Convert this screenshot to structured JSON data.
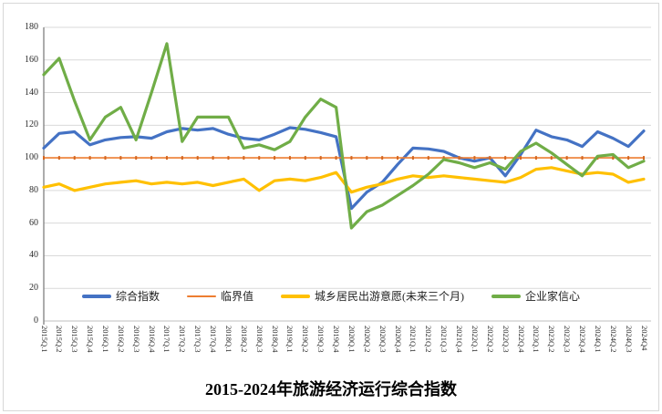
{
  "title": {
    "text": "2015-2024年旅游经济运行综合指数"
  },
  "colors": {
    "composite_blue": "#4472C4",
    "critical_orange": "#ED7D31",
    "critical_marker": "#D4661F",
    "travel_yellow": "#FFC000",
    "entrepreneur_green": "#70AD47",
    "gridline": "#D9D9D9",
    "axis_line": "#808080",
    "axis_text": "#2b2b2b"
  },
  "chart_data": {
    "type": "line",
    "title": "2015-2024年旅游经济运行综合指数",
    "grid": true,
    "legend_position": "bottom",
    "ylim": [
      0,
      180
    ],
    "yticks": [
      0,
      20,
      40,
      60,
      80,
      100,
      120,
      140,
      160,
      180
    ],
    "categories": [
      "2015Q.1",
      "2015Q.2",
      "2015Q.3",
      "2015Q.4",
      "2016Q.1",
      "2016Q.2",
      "2016Q.3",
      "2016Q.4",
      "2017Q.1",
      "2017Q.2",
      "2017Q.3",
      "2017Q.4",
      "2018Q.1",
      "2018Q.2",
      "2018Q.3",
      "2018Q.4",
      "2019Q.1",
      "2019Q.2",
      "2019Q.3",
      "2019Q.4",
      "2020Q.1",
      "2020Q.2",
      "2020Q.3",
      "2020Q.4",
      "2021Q.1",
      "2021Q.2",
      "2021Q.3",
      "2021Q.4",
      "2022Q.1",
      "2022Q.2",
      "2022Q.3",
      "2022Q.4",
      "2023Q.1",
      "2023Q.2",
      "2023Q.3",
      "2023Q.4",
      "2024Q.1",
      "2024Q.2",
      "2024Q.3",
      "2024Q4"
    ],
    "series": [
      {
        "name": "综合指数",
        "slug": "composite-index",
        "color": "#4472C4",
        "stroke_width": 3.2,
        "markers": false,
        "values": [
          106,
          115,
          116,
          108,
          111,
          112.5,
          113,
          112,
          116,
          118,
          117,
          118,
          114.5,
          112,
          111,
          114.5,
          118.5,
          117.5,
          115.5,
          113,
          69,
          79,
          85,
          96,
          106,
          105.5,
          104,
          100,
          98,
          100,
          89,
          102,
          117,
          113,
          111,
          107,
          116,
          112,
          107,
          116.5
        ]
      },
      {
        "name": "临界值",
        "slug": "critical-value",
        "color": "#ED7D31",
        "stroke_width": 1.6,
        "markers": true,
        "values": [
          100,
          100,
          100,
          100,
          100,
          100,
          100,
          100,
          100,
          100,
          100,
          100,
          100,
          100,
          100,
          100,
          100,
          100,
          100,
          100,
          100,
          100,
          100,
          100,
          100,
          100,
          100,
          100,
          100,
          100,
          100,
          100,
          100,
          100,
          100,
          100,
          100,
          100,
          100,
          100
        ]
      },
      {
        "name": "城乡居民出游意愿(未来三个月)",
        "slug": "travel-intention",
        "color": "#FFC000",
        "stroke_width": 3.2,
        "markers": false,
        "values": [
          82,
          84,
          80,
          82,
          84,
          85,
          86,
          84,
          85,
          84,
          85,
          83,
          85,
          87,
          80,
          86,
          87,
          86,
          88,
          91,
          79,
          82,
          84,
          87,
          89,
          88,
          89,
          88,
          87,
          86,
          85,
          88,
          93,
          94,
          92,
          90,
          91,
          90,
          85,
          87
        ]
      },
      {
        "name": "企业家信心",
        "slug": "entrepreneur-confidence",
        "color": "#70AD47",
        "stroke_width": 3.2,
        "markers": false,
        "values": [
          151,
          161,
          135,
          111,
          125,
          131,
          111,
          140,
          170,
          110,
          125,
          125,
          125,
          106,
          108,
          105,
          110,
          125,
          136,
          131,
          57,
          67,
          71,
          77,
          83,
          90,
          99,
          97,
          94,
          97,
          93,
          104,
          109,
          103,
          96,
          89,
          101,
          102,
          94,
          98
        ]
      }
    ]
  }
}
